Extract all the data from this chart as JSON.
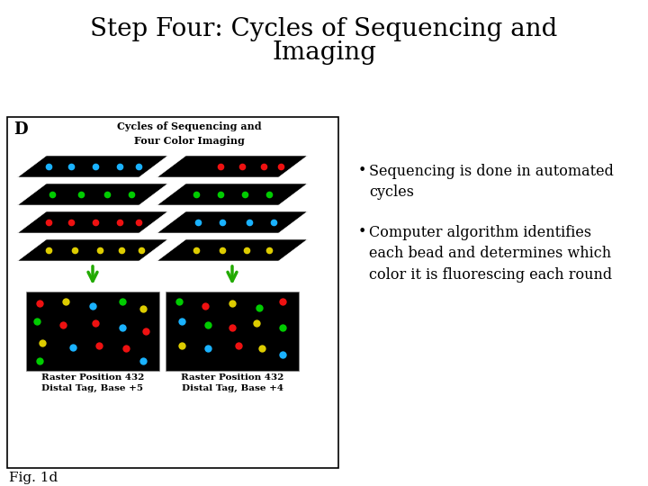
{
  "title_line1": "Step Four: Cycles of Sequencing and",
  "title_line2": "Imaging",
  "title_fontsize": 20,
  "title_font": "DejaVu Serif",
  "bullet1": "Sequencing is done in automated\ncycles",
  "bullet2": "Computer algorithm identifies\neach bead and determines which\ncolor it is fluorescing each round",
  "bullet_fontsize": 11.5,
  "fig_label": "Fig. 1d",
  "fig_label_fontsize": 11,
  "bg_color": "#ffffff",
  "panel_label": "D",
  "sub_title": "Cycles of Sequencing and\nFour Color Imaging",
  "sub_title_fontsize": 8,
  "caption1": "Raster Position 432\nDistal Tag, Base +5",
  "caption2": "Raster Position 432\nDistal Tag, Base +4",
  "caption_fontsize": 7.5,
  "caption_fontweight": "bold"
}
